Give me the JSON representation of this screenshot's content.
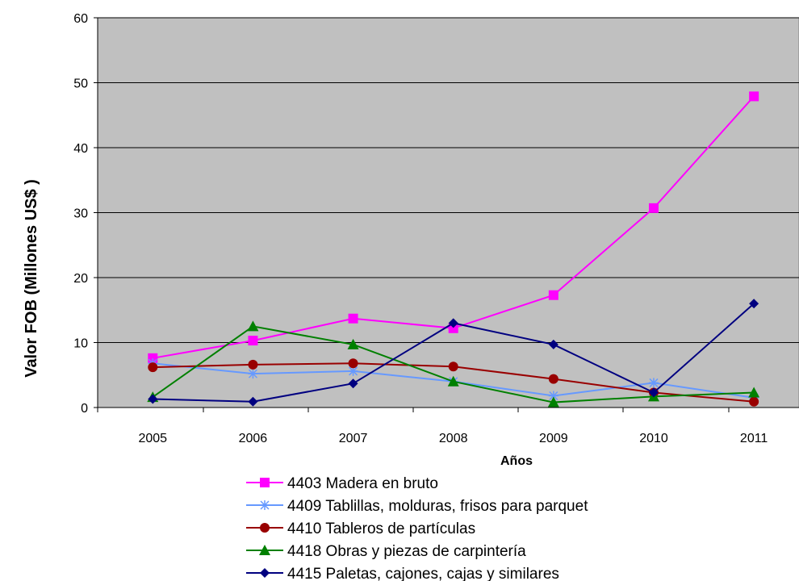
{
  "chart_data": {
    "type": "line",
    "title": "",
    "xlabel": "Años",
    "ylabel": "Valor FOB (Millones US$ )",
    "x": [
      "2005",
      "2006",
      "2007",
      "2008",
      "2009",
      "2010",
      "2011"
    ],
    "ylim": [
      0,
      60
    ],
    "yticks": [
      "0",
      "10",
      "20",
      "30",
      "40",
      "50",
      "60"
    ],
    "grid": true,
    "plot_background": "#c0c0c0",
    "legend_position": "bottom",
    "series": [
      {
        "name": "4403 Madera en bruto",
        "color": "#ff00ff",
        "marker": "square",
        "values": [
          7.6,
          10.3,
          13.7,
          12.2,
          17.3,
          30.7,
          47.9
        ]
      },
      {
        "name": "4409 Tablillas, molduras, frisos para parquet",
        "color": "#6699ff",
        "marker": "asterisk",
        "values": [
          6.8,
          5.2,
          5.6,
          4.0,
          1.8,
          3.8,
          1.5
        ]
      },
      {
        "name": "4410 Tableros de partículas",
        "color": "#990000",
        "marker": "circle",
        "values": [
          6.2,
          6.6,
          6.8,
          6.3,
          4.4,
          2.3,
          0.9
        ]
      },
      {
        "name": "4418 Obras y piezas de carpintería",
        "color": "#008000",
        "marker": "triangle",
        "values": [
          1.6,
          12.5,
          9.7,
          4.0,
          0.8,
          1.7,
          2.3
        ]
      },
      {
        "name": "4415 Paletas, cajones, cajas y similares",
        "color": "#000080",
        "marker": "diamond",
        "values": [
          1.3,
          0.9,
          3.7,
          13.0,
          9.7,
          2.3,
          16.0
        ]
      }
    ]
  }
}
